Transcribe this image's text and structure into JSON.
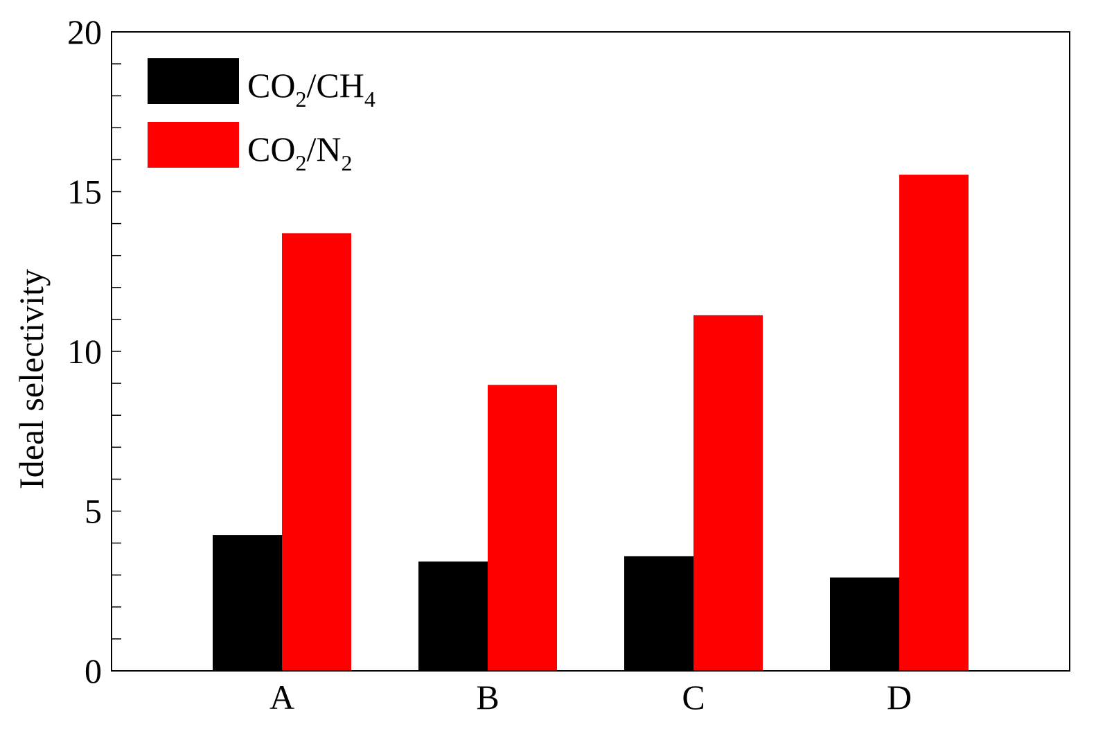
{
  "chart_data": {
    "type": "bar",
    "categories": [
      "A",
      "B",
      "C",
      "D"
    ],
    "series": [
      {
        "name": "CO2/CH4",
        "name_parts": {
          "main1": "CO",
          "sub1": "2",
          "main2": "/CH",
          "sub2": "4"
        },
        "color": "#000000",
        "values": [
          4.25,
          3.42,
          3.59,
          2.92
        ]
      },
      {
        "name": "CO2/N2",
        "name_parts": {
          "main1": "CO",
          "sub1": "2",
          "main2": "/N",
          "sub2": "2"
        },
        "color": "#ff0000",
        "values": [
          13.7,
          8.95,
          11.13,
          15.53
        ]
      }
    ],
    "title": "",
    "xlabel": "",
    "ylabel": "Ideal selectivity",
    "ylim": [
      0,
      20
    ],
    "yticks_major": [
      0,
      5,
      10,
      15,
      20
    ],
    "ytick_minor_step": 1,
    "grid": false,
    "legend_position": "top-left"
  }
}
